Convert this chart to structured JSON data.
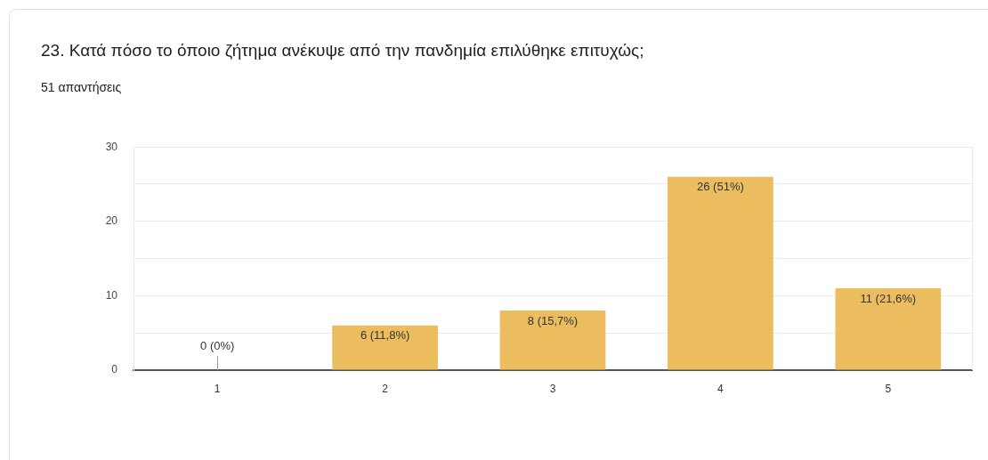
{
  "chart_data": {
    "type": "bar",
    "title": "23. Κατά πόσο το όποιο ζήτημα ανέκυψε από την πανδημία επιλύθηκε επιτυχώς;",
    "subtitle": "51 απαντήσεις",
    "categories": [
      "1",
      "2",
      "3",
      "4",
      "5"
    ],
    "values": [
      0,
      6,
      8,
      26,
      11
    ],
    "color": "#ebbd5f",
    "value_labels": [
      "0 (0%)",
      "6 (11,8%)",
      "8 (15,7%)",
      "26 (51%)",
      "11 (21,6%)"
    ],
    "ylim": [
      0,
      30
    ],
    "yticks": [
      0,
      {
        "value": 5,
        "label": null
      },
      10,
      {
        "value": 15,
        "label": null
      },
      20,
      {
        "value": 25,
        "label": null
      },
      30
    ],
    "grid": "y"
  }
}
